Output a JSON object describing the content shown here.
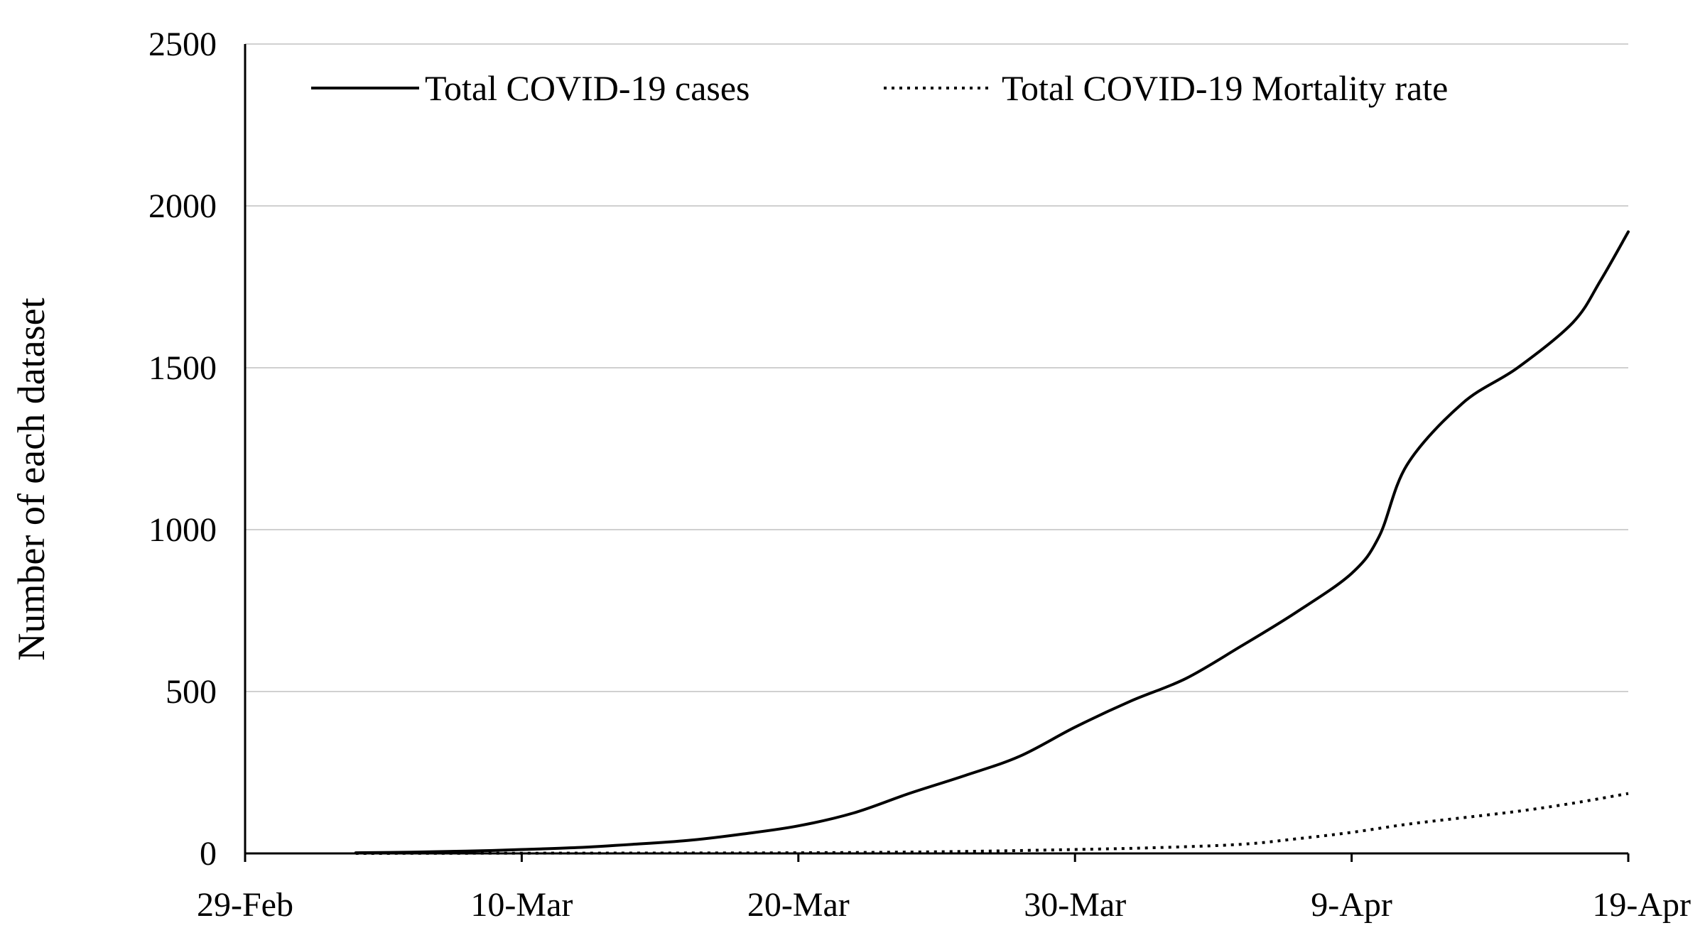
{
  "chart_data": {
    "type": "line",
    "title": "",
    "xlabel": "",
    "ylabel": "Number of each dataset",
    "ylim": [
      0,
      2500
    ],
    "yticks": [
      "0",
      "500",
      "1000",
      "1500",
      "2000",
      "2500"
    ],
    "xlim": [
      "2020-02-29",
      "2020-04-19"
    ],
    "xticks": [
      "29-Feb",
      "10-Mar",
      "20-Mar",
      "30-Mar",
      "9-Apr",
      "19-Apr"
    ],
    "grid": "horizontal",
    "legend_position": "top",
    "series": [
      {
        "name": "Total COVID-19 cases",
        "style": "solid",
        "color": "#000000",
        "points": [
          [
            "2020-03-04",
            2
          ],
          [
            "2020-03-06",
            4
          ],
          [
            "2020-03-08",
            7
          ],
          [
            "2020-03-10",
            12
          ],
          [
            "2020-03-12",
            18
          ],
          [
            "2020-03-14",
            28
          ],
          [
            "2020-03-16",
            40
          ],
          [
            "2020-03-18",
            60
          ],
          [
            "2020-03-20",
            85
          ],
          [
            "2020-03-22",
            125
          ],
          [
            "2020-03-24",
            185
          ],
          [
            "2020-03-26",
            240
          ],
          [
            "2020-03-28",
            300
          ],
          [
            "2020-03-30",
            390
          ],
          [
            "2020-04-01",
            470
          ],
          [
            "2020-04-03",
            540
          ],
          [
            "2020-04-05",
            640
          ],
          [
            "2020-04-07",
            745
          ],
          [
            "2020-04-09",
            865
          ],
          [
            "2020-04-10",
            980
          ],
          [
            "2020-04-11",
            1200
          ],
          [
            "2020-04-13",
            1390
          ],
          [
            "2020-04-15",
            1500
          ],
          [
            "2020-04-17",
            1640
          ],
          [
            "2020-04-18",
            1770
          ],
          [
            "2020-04-19",
            1920
          ]
        ]
      },
      {
        "name": "Total COVID-19 Mortality rate",
        "style": "dotted",
        "color": "#000000",
        "points": [
          [
            "2020-03-04",
            0
          ],
          [
            "2020-03-14",
            1
          ],
          [
            "2020-03-20",
            2
          ],
          [
            "2020-03-25",
            5
          ],
          [
            "2020-03-30",
            12
          ],
          [
            "2020-04-02",
            18
          ],
          [
            "2020-04-05",
            28
          ],
          [
            "2020-04-07",
            45
          ],
          [
            "2020-04-09",
            65
          ],
          [
            "2020-04-11",
            90
          ],
          [
            "2020-04-13",
            110
          ],
          [
            "2020-04-15",
            130
          ],
          [
            "2020-04-17",
            155
          ],
          [
            "2020-04-19",
            185
          ]
        ]
      }
    ]
  }
}
